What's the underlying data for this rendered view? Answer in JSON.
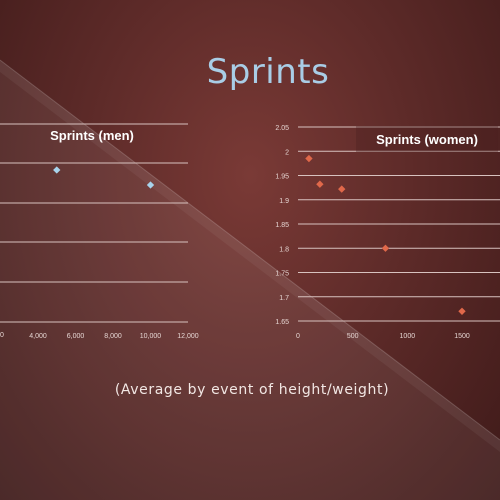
{
  "slide": {
    "title": "Sprints",
    "caption": "(Average by event of height/weight)"
  },
  "chart_data": [
    {
      "type": "scatter",
      "title": "Sprints (men)",
      "xlabel": "",
      "ylabel": "",
      "x_ticks": [
        "4,000",
        "6,000",
        "8,000",
        "10,000",
        "12,000"
      ],
      "xlim": [
        2000,
        12000
      ],
      "grid": true,
      "legend": "none",
      "series": [
        {
          "color": "#a8d4ec",
          "points": [
            {
              "x": 5000,
              "y": 1.96
            },
            {
              "x": 10000,
              "y": 1.93
            }
          ]
        }
      ]
    },
    {
      "type": "scatter",
      "title": "Sprints (women)",
      "xlabel": "",
      "ylabel": "",
      "x_ticks": [
        "0",
        "500",
        "1000",
        "1500"
      ],
      "y_ticks": [
        "1.65",
        "1.7",
        "1.75",
        "1.8",
        "1.85",
        "1.9",
        "1.95",
        "2",
        "2.05"
      ],
      "xlim": [
        0,
        1850
      ],
      "ylim": [
        1.65,
        2.05
      ],
      "grid": true,
      "legend": "none",
      "series": [
        {
          "color": "#e0684a",
          "points": [
            {
              "x": 100,
              "y": 1.985
            },
            {
              "x": 200,
              "y": 1.932
            },
            {
              "x": 400,
              "y": 1.922
            },
            {
              "x": 800,
              "y": 1.8
            },
            {
              "x": 1500,
              "y": 1.67
            }
          ]
        }
      ]
    }
  ]
}
